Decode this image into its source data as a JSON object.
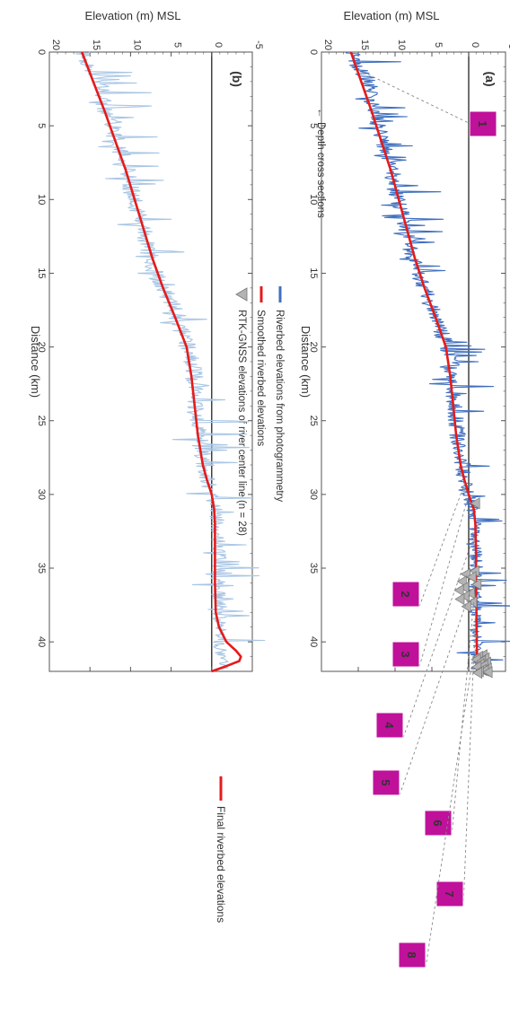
{
  "colors": {
    "photogrammetry": "#3f6fc0",
    "photogrammetry_light": "#a9c6e4",
    "smoothed": "#e51b1b",
    "final": "#e51b1b",
    "rtk": "#b3b3b3",
    "badge": "#c0119b",
    "axis": "#555555",
    "zero_line": "#111111"
  },
  "chart_data": [
    {
      "type": "line",
      "panel_label": "(a)",
      "xlabel": "Distance (km)",
      "ylabel": "Elevation (m) MSL",
      "xlim": [
        0,
        42
      ],
      "ylim": [
        -5,
        20
      ],
      "x_ticks": [
        0,
        5,
        10,
        15,
        20,
        25,
        30,
        35,
        40
      ],
      "y_ticks": [
        -5,
        0,
        5,
        10,
        15,
        20
      ],
      "grid": false,
      "rotated": "plot rotated 90 degrees clockwise",
      "legend": [
        {
          "label": "Riverbed elevations from photogrammetry",
          "marker": "line",
          "color": "#3f6fc0"
        },
        {
          "label": "Smoothed riverbed elevations",
          "marker": "line",
          "color": "#e51b1b"
        },
        {
          "label": "RTK-GNSS elevations of river center line (n = 28)",
          "marker": "triangle",
          "color": "#b3b3b3"
        }
      ],
      "legend_placement": "top",
      "depth_annotation": "Depth cross sections",
      "series": [
        {
          "name": "Riverbed elevations from photogrammetry",
          "x": [
            0,
            1,
            2,
            3,
            4,
            5,
            6,
            7,
            8,
            9,
            10,
            11,
            12,
            13,
            14,
            15,
            16,
            17,
            18,
            19,
            20,
            21,
            22,
            23,
            24,
            25,
            26,
            27,
            28,
            29,
            30,
            31,
            32,
            33,
            34,
            35,
            36,
            37,
            38,
            39,
            40,
            41,
            42
          ],
          "y": [
            16,
            15,
            13.5,
            13.4,
            13,
            12.3,
            11.8,
            11,
            10.4,
            10.2,
            9.6,
            9,
            8.5,
            8,
            7.6,
            7,
            6,
            5,
            4.2,
            3.7,
            3,
            2.4,
            2.2,
            2.1,
            1.9,
            1.7,
            1.5,
            1.2,
            0.8,
            0.6,
            0.1,
            -0.5,
            -0.8,
            -0.7,
            -0.9,
            -1,
            -0.7,
            -0.9,
            -1,
            -1,
            -1.1,
            -1.2,
            -1.3
          ]
        },
        {
          "name": "Smoothed riverbed elevations",
          "x": [
            0,
            2,
            4,
            6,
            8,
            10,
            12,
            14,
            16,
            18,
            20,
            22,
            24,
            26,
            28,
            29,
            30,
            31,
            32,
            34,
            36,
            38,
            40,
            42
          ],
          "y": [
            16,
            14.6,
            13.2,
            11.9,
            10.6,
            9.5,
            8.4,
            7.3,
            6,
            4.5,
            3.1,
            2.5,
            2.1,
            1.7,
            1.1,
            0.6,
            0,
            -0.7,
            -0.9,
            -1,
            -1,
            -1.05,
            -1.1,
            -1.15
          ]
        },
        {
          "name": "RTK-GNSS elevations of river center line (n = 28)",
          "x": [
            30.6,
            35.2,
            35.4,
            35.6,
            35.9,
            36.1,
            36.3,
            36.5,
            36.7,
            36.9,
            37.1,
            37.3,
            37.6,
            40.9,
            41.0,
            41.1,
            41.2,
            41.3,
            41.4,
            41.5,
            41.6,
            41.7,
            41.8,
            41.9,
            41.95,
            42.0,
            42.05,
            42.1
          ],
          "y": [
            -1.0,
            -0.9,
            0.3,
            -0.5,
            0.8,
            -1.2,
            0.5,
            1.2,
            -0.3,
            0.4,
            1.1,
            -0.6,
            0.2,
            -2.0,
            -1.4,
            -2.3,
            -1.1,
            -1.8,
            -2.5,
            -1.6,
            -2.1,
            -1.2,
            -2.6,
            -1.9,
            -2.2,
            -1.5,
            -2.7,
            -1.3
          ]
        }
      ],
      "cross_sections": [
        {
          "label": "1",
          "x": 1.3
        },
        {
          "label": "2",
          "x": 29.2
        },
        {
          "label": "3",
          "x": 30.1
        },
        {
          "label": "4",
          "x": 32.8
        },
        {
          "label": "5",
          "x": 35.8
        },
        {
          "label": "6",
          "x": 36.6
        },
        {
          "label": "7",
          "x": 37.6
        },
        {
          "label": "8",
          "x": 39.5
        }
      ]
    },
    {
      "type": "line",
      "panel_label": "(b)",
      "xlabel": "Distance (km)",
      "ylabel": "Elevation (m) MSL",
      "xlim": [
        0,
        42
      ],
      "ylim": [
        -5,
        20
      ],
      "x_ticks": [
        0,
        5,
        10,
        15,
        20,
        25,
        30,
        35,
        40
      ],
      "y_ticks": [
        -5,
        0,
        5,
        10,
        15,
        20
      ],
      "grid": false,
      "rotated": "plot rotated 90 degrees clockwise",
      "legend": [
        {
          "label": "Final riverbed elevations",
          "marker": "line",
          "color": "#e51b1b"
        }
      ],
      "legend_placement": "bottom-right",
      "series": [
        {
          "name": "Riverbed elevations from photogrammetry",
          "x": [
            0,
            1,
            2,
            3,
            4,
            5,
            6,
            7,
            8,
            9,
            10,
            11,
            12,
            13,
            14,
            15,
            16,
            17,
            18,
            19,
            20,
            21,
            22,
            23,
            24,
            25,
            26,
            27,
            28,
            29,
            30,
            31,
            32,
            33,
            34,
            35,
            36,
            37,
            38,
            39,
            40,
            41,
            42
          ],
          "y": [
            16,
            15,
            13.5,
            13.4,
            13,
            12.3,
            11.8,
            11,
            10.4,
            10.2,
            9.6,
            9,
            8.5,
            8,
            7.6,
            7,
            6,
            5,
            4.2,
            3.7,
            3,
            2.4,
            2.2,
            2.1,
            1.9,
            1.7,
            1.5,
            1.2,
            0.8,
            0.6,
            0.1,
            -0.5,
            -0.8,
            -0.7,
            -0.9,
            -1,
            -0.7,
            -0.9,
            -1,
            -1,
            -1.1,
            -1.2,
            -1.3
          ]
        },
        {
          "name": "Final riverbed elevations",
          "x": [
            0,
            2,
            4,
            6,
            8,
            10,
            12,
            14,
            16,
            18,
            20,
            22,
            24,
            26,
            28,
            29,
            30,
            31,
            32,
            34,
            36,
            38,
            39,
            40,
            40.6,
            41,
            41.3,
            41.6,
            42
          ],
          "y": [
            16,
            14.6,
            13.2,
            11.9,
            10.6,
            9.5,
            8.4,
            7.3,
            6,
            4.5,
            3.1,
            2.5,
            2.1,
            1.7,
            1.1,
            0.6,
            0,
            -0.3,
            -0.4,
            -0.4,
            -0.4,
            -0.5,
            -0.9,
            -1.8,
            -3,
            -3.6,
            -3.4,
            -2,
            0
          ]
        }
      ]
    }
  ]
}
